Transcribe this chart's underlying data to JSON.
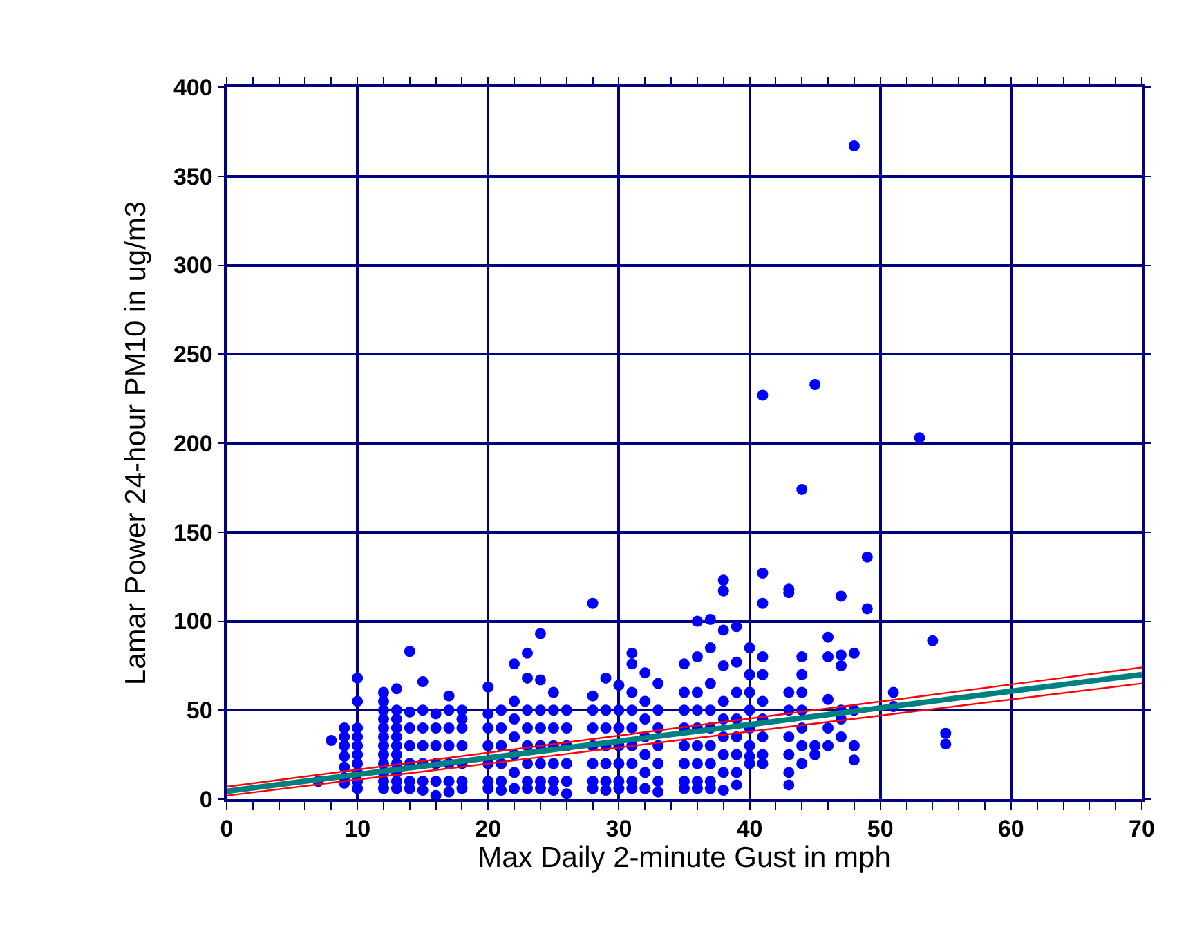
{
  "chart_data": {
    "type": "scatter",
    "xlabel": "Max Daily 2-minute Gust in mph",
    "ylabel": "Lamar Power 24-hour PM10 in ug/m3",
    "xlim": [
      0,
      70
    ],
    "ylim": [
      0,
      400
    ],
    "xticks": [
      0,
      10,
      20,
      30,
      40,
      50,
      60,
      70
    ],
    "yticks": [
      0,
      50,
      100,
      150,
      200,
      250,
      300,
      350,
      400
    ],
    "grid": true,
    "series": [
      {
        "color": "#0000ff",
        "marker": "circle",
        "x": [
          7,
          8,
          9,
          9,
          9,
          9,
          9,
          9,
          9,
          10,
          10,
          10,
          10,
          10,
          10,
          10,
          10,
          10,
          10,
          12,
          12,
          12,
          12,
          12,
          12,
          12,
          12,
          12,
          12,
          12,
          12,
          13,
          13,
          13,
          13,
          13,
          13,
          13,
          13,
          13,
          13,
          13,
          14,
          14,
          14,
          14,
          14,
          14,
          14,
          15,
          15,
          15,
          15,
          15,
          15,
          15,
          16,
          16,
          16,
          16,
          16,
          16,
          17,
          17,
          17,
          17,
          17,
          17,
          17,
          18,
          18,
          18,
          18,
          18,
          18,
          18,
          20,
          20,
          20,
          20,
          20,
          20,
          20,
          21,
          21,
          21,
          21,
          21,
          21,
          22,
          22,
          22,
          22,
          22,
          22,
          22,
          23,
          23,
          23,
          23,
          23,
          23,
          23,
          23,
          24,
          24,
          24,
          24,
          24,
          24,
          24,
          24,
          25,
          25,
          25,
          25,
          25,
          25,
          25,
          26,
          26,
          26,
          26,
          26,
          26,
          28,
          28,
          28,
          28,
          28,
          28,
          28,
          28,
          29,
          29,
          29,
          29,
          29,
          29,
          29,
          30,
          30,
          30,
          30,
          30,
          30,
          30,
          31,
          31,
          31,
          31,
          31,
          31,
          31,
          31,
          31,
          32,
          32,
          32,
          32,
          32,
          32,
          32,
          33,
          33,
          33,
          33,
          33,
          33,
          33,
          35,
          35,
          35,
          35,
          35,
          35,
          35,
          35,
          36,
          36,
          36,
          36,
          36,
          36,
          36,
          36,
          36,
          37,
          37,
          37,
          37,
          37,
          37,
          37,
          37,
          37,
          38,
          38,
          38,
          38,
          38,
          38,
          38,
          38,
          38,
          38,
          39,
          39,
          39,
          39,
          39,
          39,
          39,
          39,
          40,
          40,
          40,
          40,
          40,
          40,
          40,
          40,
          41,
          41,
          41,
          41,
          41,
          41,
          41,
          41,
          41,
          41,
          43,
          43,
          43,
          43,
          43,
          43,
          43,
          43,
          44,
          44,
          44,
          44,
          44,
          44,
          44,
          44,
          45,
          45,
          45,
          46,
          46,
          46,
          46,
          46,
          47,
          47,
          47,
          47,
          47,
          47,
          48,
          48,
          48,
          48,
          48,
          49,
          49,
          51,
          51,
          53,
          54,
          55,
          55
        ],
        "values": [
          10,
          33,
          40,
          35,
          30,
          24,
          18,
          12,
          9,
          68,
          55,
          40,
          35,
          30,
          25,
          20,
          15,
          10,
          6,
          60,
          55,
          50,
          45,
          40,
          35,
          30,
          25,
          20,
          15,
          10,
          6,
          62,
          50,
          45,
          40,
          35,
          30,
          25,
          20,
          15,
          10,
          6,
          83,
          49,
          40,
          30,
          20,
          10,
          6,
          66,
          50,
          40,
          30,
          20,
          10,
          5,
          48,
          40,
          30,
          20,
          10,
          2,
          58,
          50,
          40,
          30,
          20,
          10,
          4,
          50,
          45,
          40,
          30,
          20,
          10,
          6,
          63,
          48,
          40,
          30,
          20,
          10,
          6,
          50,
          40,
          30,
          20,
          10,
          5,
          76,
          55,
          45,
          35,
          25,
          15,
          6,
          82,
          68,
          50,
          40,
          30,
          20,
          10,
          6,
          93,
          67,
          50,
          40,
          30,
          20,
          10,
          6,
          60,
          50,
          40,
          30,
          20,
          10,
          5,
          50,
          40,
          30,
          20,
          10,
          3,
          110,
          58,
          50,
          40,
          30,
          20,
          10,
          6,
          68,
          50,
          40,
          30,
          20,
          10,
          5,
          64,
          50,
          40,
          30,
          20,
          10,
          6,
          82,
          76,
          60,
          50,
          40,
          30,
          20,
          10,
          6,
          71,
          55,
          45,
          35,
          25,
          15,
          6,
          65,
          50,
          40,
          30,
          20,
          10,
          4,
          76,
          60,
          50,
          40,
          30,
          20,
          10,
          6,
          100,
          80,
          60,
          50,
          40,
          30,
          20,
          10,
          6,
          101,
          85,
          65,
          50,
          40,
          30,
          20,
          10,
          6,
          123,
          117,
          95,
          75,
          55,
          45,
          35,
          25,
          15,
          5,
          97,
          77,
          60,
          45,
          35,
          25,
          15,
          8,
          85,
          70,
          60,
          50,
          40,
          30,
          24,
          20,
          227,
          127,
          110,
          80,
          70,
          55,
          45,
          35,
          25,
          20,
          118,
          116,
          60,
          50,
          35,
          25,
          15,
          8,
          174,
          80,
          70,
          60,
          50,
          40,
          30,
          20,
          233,
          30,
          25,
          91,
          80,
          56,
          40,
          30,
          114,
          81,
          75,
          50,
          45,
          35,
          367,
          82,
          50,
          30,
          22,
          136,
          107,
          60,
          52,
          203,
          89,
          37,
          31
        ]
      },
      {
        "type": "line",
        "color": "#008080",
        "x": [
          0,
          70
        ],
        "values": [
          4.5,
          70
        ]
      },
      {
        "type": "line",
        "color": "#ff0000",
        "x": [
          0,
          70
        ],
        "values": [
          7,
          74
        ]
      },
      {
        "type": "line",
        "color": "#ff0000",
        "x": [
          0,
          70
        ],
        "values": [
          2,
          65
        ]
      }
    ]
  }
}
